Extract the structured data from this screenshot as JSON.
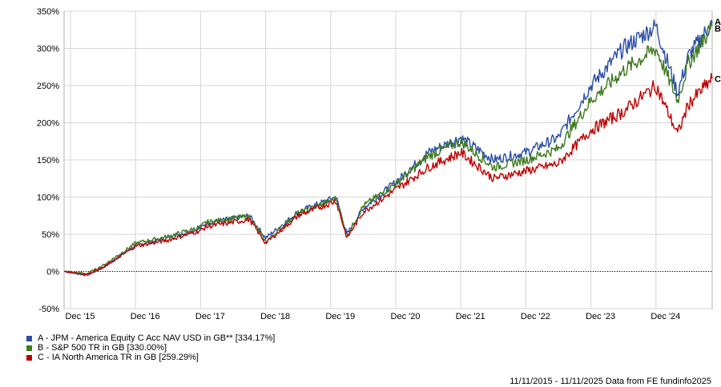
{
  "chart_data": {
    "type": "line",
    "title": "",
    "xlabel": "",
    "ylabel": "",
    "ylim": [
      -50,
      350
    ],
    "y_ticks": [
      "-50%",
      "0%",
      "50%",
      "100%",
      "150%",
      "200%",
      "250%",
      "300%",
      "350%"
    ],
    "y_tick_values": [
      -50,
      0,
      50,
      100,
      150,
      200,
      250,
      300,
      350
    ],
    "x_ticks": [
      "Dec '15",
      "Dec '16",
      "Dec '17",
      "Dec '18",
      "Dec '19",
      "Dec '20",
      "Dec '21",
      "Dec '22",
      "Dec '23",
      "Dec '24"
    ],
    "grid": true,
    "legend_position": "bottom-left",
    "x": [
      "Nov 2015",
      "Mar 2016",
      "Jun 2016",
      "Dec 2016",
      "Jun 2017",
      "Dec 2017",
      "Jan 2018",
      "Sep 2018",
      "Dec 2018",
      "Jun 2019",
      "Jan 2020",
      "Mar 2020",
      "Jun 2020",
      "Dec 2020",
      "Jun 2021",
      "Dec 2021",
      "Jun 2022",
      "Dec 2022",
      "Jun 2023",
      "Dec 2023",
      "Jun 2024",
      "Dec 2024",
      "Apr 2025",
      "Jun 2025",
      "Nov 2025"
    ],
    "series": [
      {
        "name": "A - JPM - America Equity C Acc NAV USD in GB** [334.17%]",
        "end_label": "A",
        "color": "#2a4ea6",
        "values": [
          0,
          -5,
          5,
          35,
          45,
          58,
          65,
          75,
          45,
          80,
          100,
          50,
          85,
          120,
          160,
          180,
          150,
          160,
          180,
          250,
          300,
          330,
          240,
          290,
          334
        ]
      },
      {
        "name": "B - S&P 500 TR in GB [330.00%]",
        "end_label": "B",
        "color": "#3e7a1e",
        "values": [
          0,
          -3,
          8,
          38,
          47,
          60,
          66,
          74,
          40,
          78,
          98,
          48,
          88,
          118,
          155,
          175,
          140,
          150,
          165,
          230,
          270,
          300,
          230,
          280,
          330
        ]
      },
      {
        "name": "C - IA North America TR in GB [259.29%]",
        "end_label": "C",
        "color": "#c00000",
        "values": [
          0,
          -4,
          5,
          34,
          42,
          55,
          60,
          70,
          38,
          75,
          95,
          45,
          80,
          110,
          140,
          160,
          125,
          135,
          145,
          190,
          215,
          250,
          185,
          225,
          259
        ]
      }
    ]
  },
  "footer": {
    "text": "11/11/2015 - 11/11/2025 Data from FE fundinfo2025"
  }
}
